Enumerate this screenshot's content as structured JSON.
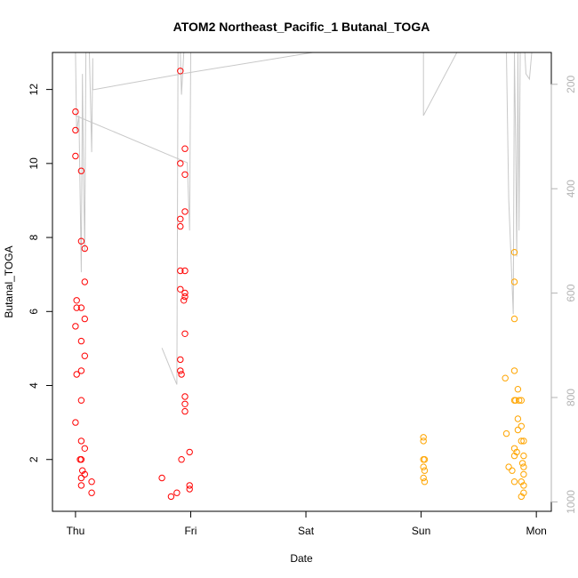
{
  "chart_data": {
    "type": "scatter",
    "title": "ATOM2 Northeast_Pacific_1 Butanal_TOGA",
    "xlabel": "Date",
    "ylabel": "Butanal_TOGA",
    "x_ticks": [
      "Thu",
      "Fri",
      "Sat",
      "Sun",
      "Mon"
    ],
    "xlim": [
      -0.2,
      4.13
    ],
    "ylim": [
      0.6,
      13.0
    ],
    "y_ticks": [
      2,
      4,
      6,
      8,
      10,
      12
    ],
    "y2_ticks": [
      200,
      400,
      600,
      800,
      1000
    ],
    "y2_lim": [
      1018,
      139
    ],
    "grid": false,
    "colors": {
      "series_red": "#ff0000",
      "series_orange": "#ffa500",
      "profile_line": "#c8c8c8",
      "right_axis": "#b3b3b3"
    },
    "series": [
      {
        "color": "#ff0000",
        "points": [
          {
            "x": 0.0,
            "y": 11.4
          },
          {
            "x": 0.0,
            "y": 10.9
          },
          {
            "x": 0.0,
            "y": 10.2
          },
          {
            "x": 0.05,
            "y": 9.8
          },
          {
            "x": 0.05,
            "y": 7.9
          },
          {
            "x": 0.08,
            "y": 7.7
          },
          {
            "x": 0.08,
            "y": 6.8
          },
          {
            "x": 0.01,
            "y": 6.3
          },
          {
            "x": 0.01,
            "y": 6.1
          },
          {
            "x": 0.05,
            "y": 6.1
          },
          {
            "x": 0.08,
            "y": 5.8
          },
          {
            "x": 0.0,
            "y": 5.6
          },
          {
            "x": 0.05,
            "y": 5.2
          },
          {
            "x": 0.08,
            "y": 4.8
          },
          {
            "x": 0.05,
            "y": 4.4
          },
          {
            "x": 0.01,
            "y": 4.3
          },
          {
            "x": 0.05,
            "y": 3.6
          },
          {
            "x": 0.0,
            "y": 3.0
          },
          {
            "x": 0.05,
            "y": 2.5
          },
          {
            "x": 0.08,
            "y": 2.3
          },
          {
            "x": 0.04,
            "y": 2.0
          },
          {
            "x": 0.05,
            "y": 2.0
          },
          {
            "x": 0.06,
            "y": 1.7
          },
          {
            "x": 0.08,
            "y": 1.6
          },
          {
            "x": 0.05,
            "y": 1.5
          },
          {
            "x": 0.14,
            "y": 1.4
          },
          {
            "x": 0.05,
            "y": 1.3
          },
          {
            "x": 0.14,
            "y": 1.1
          },
          {
            "x": 0.91,
            "y": 12.5
          },
          {
            "x": 0.95,
            "y": 10.4
          },
          {
            "x": 0.91,
            "y": 10.0
          },
          {
            "x": 0.95,
            "y": 9.7
          },
          {
            "x": 0.95,
            "y": 8.7
          },
          {
            "x": 0.91,
            "y": 8.5
          },
          {
            "x": 0.91,
            "y": 8.3
          },
          {
            "x": 0.91,
            "y": 7.1
          },
          {
            "x": 0.95,
            "y": 7.1
          },
          {
            "x": 0.91,
            "y": 6.6
          },
          {
            "x": 0.95,
            "y": 6.5
          },
          {
            "x": 0.95,
            "y": 6.4
          },
          {
            "x": 0.94,
            "y": 6.3
          },
          {
            "x": 0.95,
            "y": 5.4
          },
          {
            "x": 0.91,
            "y": 4.7
          },
          {
            "x": 0.91,
            "y": 4.4
          },
          {
            "x": 0.92,
            "y": 4.3
          },
          {
            "x": 0.95,
            "y": 3.7
          },
          {
            "x": 0.95,
            "y": 3.5
          },
          {
            "x": 0.95,
            "y": 3.3
          },
          {
            "x": 0.99,
            "y": 2.2
          },
          {
            "x": 0.92,
            "y": 2.0
          },
          {
            "x": 0.75,
            "y": 1.5
          },
          {
            "x": 0.99,
            "y": 1.3
          },
          {
            "x": 0.99,
            "y": 1.2
          },
          {
            "x": 0.88,
            "y": 1.1
          },
          {
            "x": 0.83,
            "y": 1.0
          }
        ]
      },
      {
        "color": "#ffa500",
        "points": [
          {
            "x": 3.02,
            "y": 2.6
          },
          {
            "x": 3.02,
            "y": 2.5
          },
          {
            "x": 3.02,
            "y": 2.0
          },
          {
            "x": 3.03,
            "y": 2.0
          },
          {
            "x": 3.02,
            "y": 1.8
          },
          {
            "x": 3.03,
            "y": 1.7
          },
          {
            "x": 3.02,
            "y": 1.5
          },
          {
            "x": 3.03,
            "y": 1.4
          },
          {
            "x": 3.81,
            "y": 7.6
          },
          {
            "x": 3.81,
            "y": 6.8
          },
          {
            "x": 3.81,
            "y": 5.8
          },
          {
            "x": 3.81,
            "y": 4.4
          },
          {
            "x": 3.73,
            "y": 4.2
          },
          {
            "x": 3.84,
            "y": 3.9
          },
          {
            "x": 3.81,
            "y": 3.6
          },
          {
            "x": 3.82,
            "y": 3.6
          },
          {
            "x": 3.85,
            "y": 3.6
          },
          {
            "x": 3.87,
            "y": 3.6
          },
          {
            "x": 3.84,
            "y": 3.1
          },
          {
            "x": 3.87,
            "y": 2.9
          },
          {
            "x": 3.84,
            "y": 2.8
          },
          {
            "x": 3.74,
            "y": 2.7
          },
          {
            "x": 3.87,
            "y": 2.5
          },
          {
            "x": 3.89,
            "y": 2.5
          },
          {
            "x": 3.81,
            "y": 2.3
          },
          {
            "x": 3.83,
            "y": 2.2
          },
          {
            "x": 3.81,
            "y": 2.1
          },
          {
            "x": 3.89,
            "y": 2.1
          },
          {
            "x": 3.88,
            "y": 1.9
          },
          {
            "x": 3.89,
            "y": 1.8
          },
          {
            "x": 3.76,
            "y": 1.8
          },
          {
            "x": 3.79,
            "y": 1.7
          },
          {
            "x": 3.89,
            "y": 1.6
          },
          {
            "x": 3.81,
            "y": 1.4
          },
          {
            "x": 3.87,
            "y": 1.4
          },
          {
            "x": 3.89,
            "y": 1.3
          },
          {
            "x": 3.89,
            "y": 1.1
          },
          {
            "x": 3.87,
            "y": 1.0
          }
        ]
      }
    ],
    "profile_line": [
      [
        {
          "x": 0.0,
          "y2": 139
        },
        {
          "x": 0.01,
          "y2": 290
        },
        {
          "x": 0.03,
          "y2": 260
        },
        {
          "x": 0.05,
          "y2": 560
        },
        {
          "x": 0.06,
          "y2": 180
        },
        {
          "x": 0.07,
          "y2": 380
        },
        {
          "x": 0.08,
          "y2": 520
        },
        {
          "x": 0.09,
          "y2": 139
        },
        {
          "x": 0.12,
          "y2": 139
        },
        {
          "x": 0.14,
          "y2": 330
        },
        {
          "x": 0.15,
          "y2": 150
        },
        {
          "x": 0.15,
          "y2": 210
        },
        {
          "x": 0.16,
          "y2": 210
        },
        {
          "x": 0.92,
          "y2": 180
        },
        {
          "x": 2.06,
          "y2": 139
        },
        {
          "x": 2.3,
          "y2": 139
        }
      ],
      [
        {
          "x": 0.0,
          "y2": 260
        },
        {
          "x": 0.97,
          "y2": 350
        },
        {
          "x": 0.99,
          "y2": 480
        },
        {
          "x": 1.0,
          "y2": 139
        },
        {
          "x": 0.94,
          "y2": 139
        },
        {
          "x": 0.92,
          "y2": 220
        },
        {
          "x": 0.91,
          "y2": 139
        },
        {
          "x": 0.89,
          "y2": 139
        },
        {
          "x": 0.88,
          "y2": 775
        },
        {
          "x": 0.75,
          "y2": 705
        }
      ],
      [
        {
          "x": 3.02,
          "y2": 139
        },
        {
          "x": 3.02,
          "y2": 260
        },
        {
          "x": 3.31,
          "y2": 139
        }
      ],
      [
        {
          "x": 3.41,
          "y2": 139
        },
        {
          "x": 3.62,
          "y2": 139
        },
        {
          "x": 3.74,
          "y2": 139
        },
        {
          "x": 3.76,
          "y2": 420
        },
        {
          "x": 3.8,
          "y2": 640
        },
        {
          "x": 3.81,
          "y2": 139
        },
        {
          "x": 3.82,
          "y2": 300
        },
        {
          "x": 3.83,
          "y2": 530
        },
        {
          "x": 3.84,
          "y2": 139
        },
        {
          "x": 3.85,
          "y2": 480
        },
        {
          "x": 3.86,
          "y2": 139
        },
        {
          "x": 3.87,
          "y2": 139
        },
        {
          "x": 3.9,
          "y2": 139
        },
        {
          "x": 3.91,
          "y2": 180
        },
        {
          "x": 3.94,
          "y2": 190
        },
        {
          "x": 3.96,
          "y2": 139
        }
      ]
    ]
  }
}
